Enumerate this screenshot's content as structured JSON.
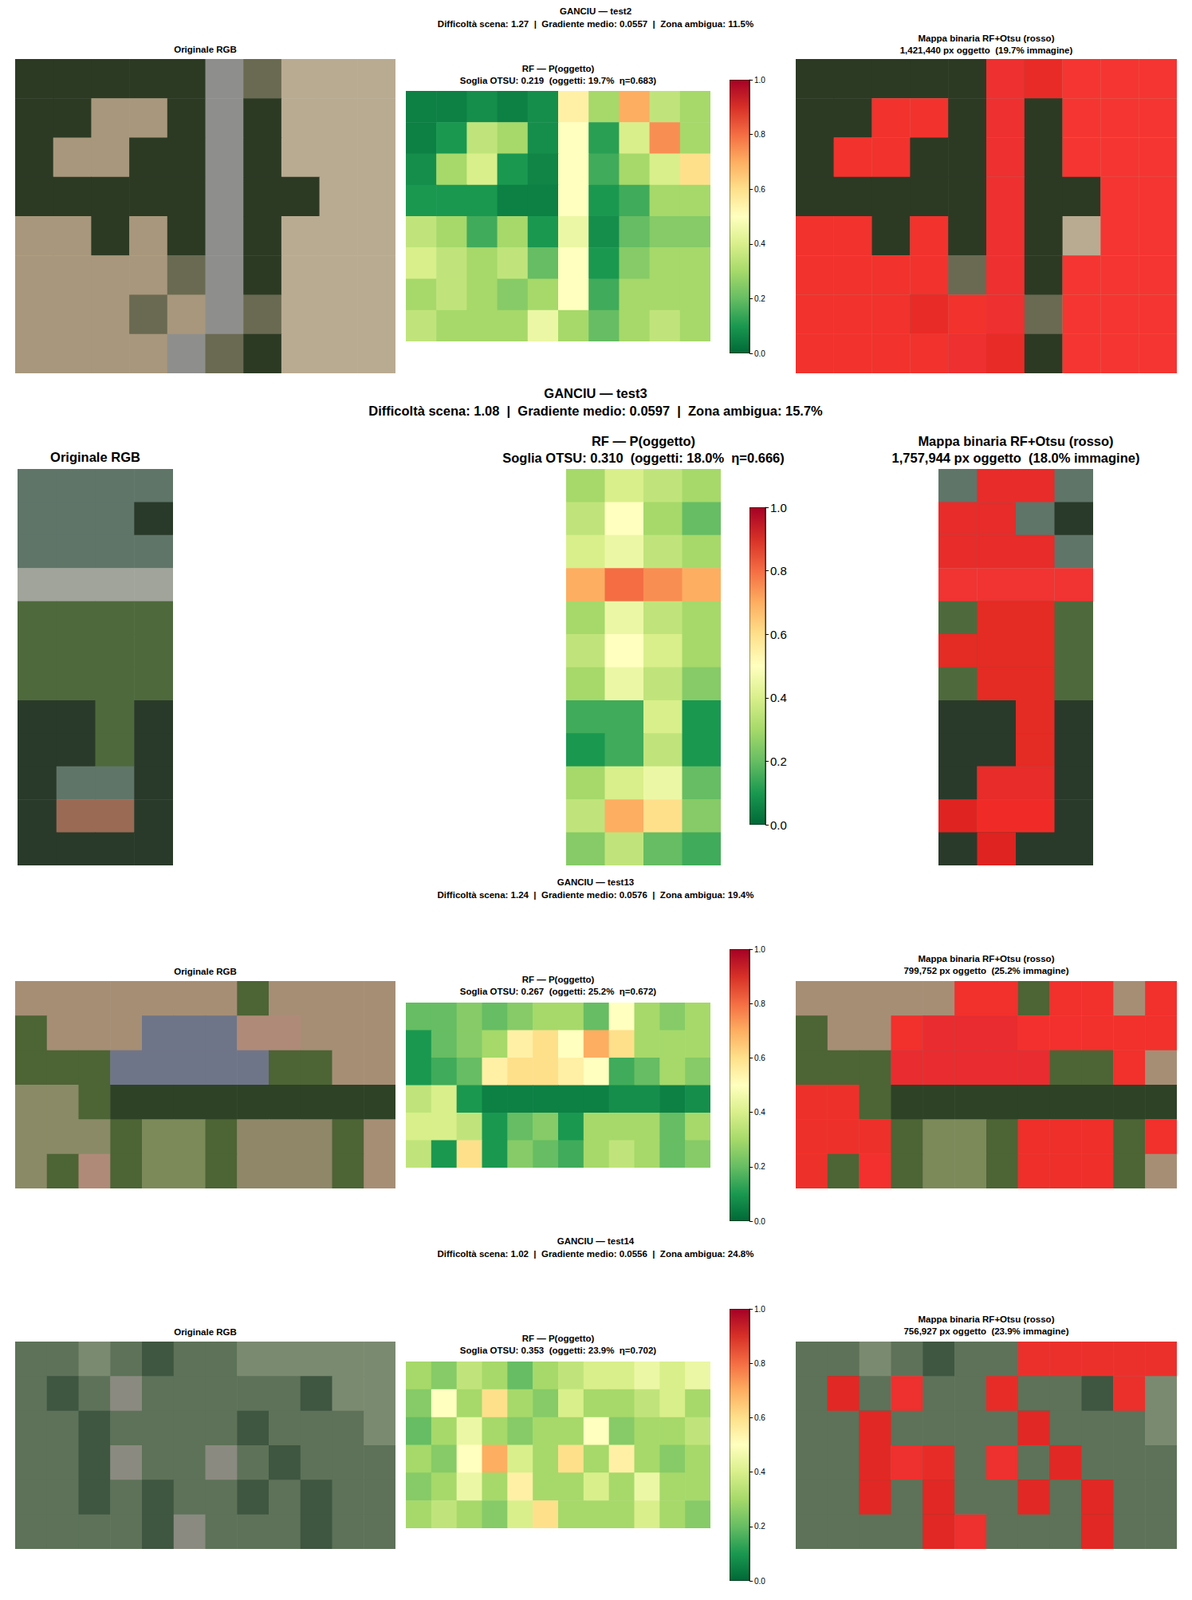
{
  "chart_data": [
    {
      "type": "heatmap",
      "title": "GANCIU — test2",
      "subtitle": "Difficoltà scena: 1.27  |  Gradiente medio: 0.0557  |  Zona ambigua: 11.5%",
      "rgb_title": "Originale RGB",
      "prob_title": "RF — P(oggetto)",
      "prob_subtitle": "Soglia OTSU: 0.219  (oggetti: 19.7%  η=0.683)",
      "binary_title": "Mappa binaria RF+Otsu (rosso)",
      "binary_subtitle": "1,421,440 px oggetto  (19.7% immagine)",
      "threshold": 0.219,
      "color": "#ff2020",
      "tick_labels": false,
      "rgb": [
        [
          "#2c3a24",
          "#2c3a24",
          "#2c3a24",
          "#2c3a24",
          "#2c3a24",
          "#8e8f8c",
          "#6a6a52",
          "#b9ab92",
          "#b9ab92",
          "#b9ab92"
        ],
        [
          "#2c3a24",
          "#2c3a24",
          "#a8977c",
          "#a8977c",
          "#2c3a24",
          "#8e8f8c",
          "#2c3a24",
          "#b9ab92",
          "#b9ab92",
          "#b9ab92"
        ],
        [
          "#2c3a24",
          "#a8977c",
          "#a8977c",
          "#2c3a24",
          "#2c3a24",
          "#8e8f8c",
          "#2c3a24",
          "#b9ab92",
          "#b9ab92",
          "#b9ab92"
        ],
        [
          "#2c3a24",
          "#2c3a24",
          "#2c3a24",
          "#2c3a24",
          "#2c3a24",
          "#8e8f8c",
          "#2c3a24",
          "#2c3a24",
          "#b9ab92",
          "#b9ab92"
        ],
        [
          "#a8977c",
          "#a8977c",
          "#2c3a24",
          "#a8977c",
          "#2c3a24",
          "#8e8f8c",
          "#2c3a24",
          "#b9ab92",
          "#b9ab92",
          "#b9ab92"
        ],
        [
          "#a8977c",
          "#a8977c",
          "#a8977c",
          "#a8977c",
          "#6a6a52",
          "#8e8f8c",
          "#2c3a24",
          "#b9ab92",
          "#b9ab92",
          "#b9ab92"
        ],
        [
          "#a8977c",
          "#a8977c",
          "#a8977c",
          "#6a6a52",
          "#a8977c",
          "#8e8f8c",
          "#6a6a52",
          "#b9ab92",
          "#b9ab92",
          "#b9ab92"
        ],
        [
          "#a8977c",
          "#a8977c",
          "#a8977c",
          "#a8977c",
          "#8e8f8c",
          "#6a6a52",
          "#2c3a24",
          "#b9ab92",
          "#b9ab92",
          "#b9ab92"
        ]
      ],
      "probability": [
        [
          0.05,
          0.05,
          0.08,
          0.05,
          0.08,
          0.55,
          0.3,
          0.7,
          0.35,
          0.3
        ],
        [
          0.05,
          0.1,
          0.35,
          0.3,
          0.08,
          0.5,
          0.12,
          0.4,
          0.75,
          0.3
        ],
        [
          0.08,
          0.3,
          0.4,
          0.1,
          0.06,
          0.5,
          0.15,
          0.3,
          0.4,
          0.6
        ],
        [
          0.1,
          0.1,
          0.1,
          0.05,
          0.05,
          0.5,
          0.1,
          0.15,
          0.3,
          0.3
        ],
        [
          0.35,
          0.3,
          0.15,
          0.3,
          0.1,
          0.45,
          0.08,
          0.2,
          0.25,
          0.25
        ],
        [
          0.4,
          0.35,
          0.3,
          0.35,
          0.2,
          0.5,
          0.1,
          0.25,
          0.3,
          0.3
        ],
        [
          0.3,
          0.35,
          0.3,
          0.25,
          0.3,
          0.5,
          0.15,
          0.3,
          0.3,
          0.3
        ],
        [
          0.35,
          0.3,
          0.3,
          0.3,
          0.45,
          0.3,
          0.2,
          0.3,
          0.35,
          0.3
        ]
      ],
      "colorbar": {
        "range": [
          0,
          1
        ],
        "ticks": [
          {
            "value": 0,
            "label": "0.0"
          },
          0.2,
          0.4,
          0.6,
          0.8,
          {
            "value": 1,
            "label": "1.0"
          }
        ]
      }
    },
    {
      "type": "heatmap",
      "title": "GANCIU — test3",
      "subtitle": "Difficoltà scena: 1.08  |  Gradiente medio: 0.0597  |  Zona ambigua: 15.7%",
      "rgb_title": "Originale RGB",
      "prob_title": "RF — P(oggetto)",
      "prob_subtitle": "Soglia OTSU: 0.310  (oggetti: 18.0%  η=0.666)",
      "binary_title": "Mappa binaria RF+Otsu (rosso)",
      "binary_subtitle": "1,757,944 px oggetto  (18.0% immagine)",
      "threshold": 0.31,
      "color": "#ff2020",
      "tick_labels": false,
      "rgb": [
        [
          "#5f7568",
          "#5f7568",
          "#5f7568",
          "#5f7568"
        ],
        [
          "#5f7568",
          "#5f7568",
          "#5f7568",
          "#2a3a2a"
        ],
        [
          "#5f7568",
          "#5f7568",
          "#5f7568",
          "#5f7568"
        ],
        [
          "#a0a49a",
          "#a0a49a",
          "#a0a49a",
          "#a0a49a"
        ],
        [
          "#4e6a3c",
          "#4e6a3c",
          "#4e6a3c",
          "#4e6a3c"
        ],
        [
          "#4e6a3c",
          "#4e6a3c",
          "#4e6a3c",
          "#4e6a3c"
        ],
        [
          "#4e6a3c",
          "#4e6a3c",
          "#4e6a3c",
          "#4e6a3c"
        ],
        [
          "#2a3a2a",
          "#2a3a2a",
          "#4e6a3c",
          "#2a3a2a"
        ],
        [
          "#2a3a2a",
          "#2a3a2a",
          "#4e6a3c",
          "#2a3a2a"
        ],
        [
          "#2a3a2a",
          "#5f7568",
          "#5f7568",
          "#2a3a2a"
        ],
        [
          "#2a3a2a",
          "#9a6a55",
          "#9a6a55",
          "#2a3a2a"
        ],
        [
          "#2a3a2a",
          "#2a3a2a",
          "#2a3a2a",
          "#2a3a2a"
        ]
      ],
      "probability": [
        [
          0.3,
          0.4,
          0.35,
          0.3
        ],
        [
          0.35,
          0.5,
          0.3,
          0.2
        ],
        [
          0.4,
          0.45,
          0.35,
          0.3
        ],
        [
          0.7,
          0.8,
          0.75,
          0.7
        ],
        [
          0.3,
          0.45,
          0.35,
          0.3
        ],
        [
          0.35,
          0.5,
          0.4,
          0.3
        ],
        [
          0.3,
          0.45,
          0.35,
          0.25
        ],
        [
          0.15,
          0.15,
          0.4,
          0.1
        ],
        [
          0.1,
          0.15,
          0.35,
          0.1
        ],
        [
          0.3,
          0.4,
          0.45,
          0.2
        ],
        [
          0.35,
          0.7,
          0.6,
          0.25
        ],
        [
          0.25,
          0.35,
          0.2,
          0.15
        ]
      ],
      "colorbar": {
        "range": [
          0,
          1
        ],
        "ticks": [
          {
            "value": 0,
            "label": "0.0"
          },
          0.2,
          0.4,
          0.6,
          0.8,
          {
            "value": 1,
            "label": "1.0"
          }
        ]
      }
    },
    {
      "type": "heatmap",
      "title": "GANCIU — test13",
      "subtitle": "Difficoltà scena: 1.24  |  Gradiente medio: 0.0576  |  Zona ambigua: 19.4%",
      "rgb_title": "Originale RGB",
      "prob_title": "RF — P(oggetto)",
      "prob_subtitle": "Soglia OTSU: 0.267  (oggetti: 25.2%  η=0.672)",
      "binary_title": "Mappa binaria RF+Otsu (rosso)",
      "binary_subtitle": "799,752 px oggetto  (25.2% immagine)",
      "threshold": 0.267,
      "color": "#ff2020",
      "tick_labels": false,
      "rgb": [
        [
          "#a68e75",
          "#a68e75",
          "#a68e75",
          "#a68e75",
          "#a68e75",
          "#a68e75",
          "#a68e75",
          "#4d6435",
          "#a68e75",
          "#a68e75",
          "#a68e75",
          "#a68e75"
        ],
        [
          "#4d6435",
          "#a68e75",
          "#a68e75",
          "#a68e75",
          "#6f7588",
          "#6f7588",
          "#6f7588",
          "#b08a78",
          "#b08a78",
          "#a68e75",
          "#a68e75",
          "#a68e75"
        ],
        [
          "#4d6435",
          "#4d6435",
          "#4d6435",
          "#6f7588",
          "#6f7588",
          "#6f7588",
          "#6f7588",
          "#6f7588",
          "#4d6435",
          "#4d6435",
          "#a68e75",
          "#a68e75"
        ],
        [
          "#8a8a66",
          "#8a8a66",
          "#4d6435",
          "#2e4226",
          "#2e4226",
          "#2e4226",
          "#2e4226",
          "#2e4226",
          "#2e4226",
          "#2e4226",
          "#2e4226",
          "#2e4226"
        ],
        [
          "#8a8a66",
          "#8a8a66",
          "#8a8a66",
          "#4d6435",
          "#7c8a5a",
          "#7c8a5a",
          "#4d6435",
          "#8f8768",
          "#8f8768",
          "#8f8768",
          "#4d6435",
          "#a68e75"
        ],
        [
          "#8a8a66",
          "#4d6435",
          "#b08a78",
          "#4d6435",
          "#7c8a5a",
          "#7c8a5a",
          "#4d6435",
          "#8f8768",
          "#8f8768",
          "#8f8768",
          "#4d6435",
          "#a68e75"
        ]
      ],
      "probability": [
        [
          0.2,
          0.2,
          0.25,
          0.2,
          0.25,
          0.3,
          0.3,
          0.2,
          0.5,
          0.3,
          0.25,
          0.3
        ],
        [
          0.1,
          0.2,
          0.25,
          0.3,
          0.55,
          0.6,
          0.5,
          0.7,
          0.6,
          0.3,
          0.3,
          0.3
        ],
        [
          0.1,
          0.15,
          0.2,
          0.55,
          0.6,
          0.6,
          0.55,
          0.5,
          0.15,
          0.2,
          0.3,
          0.25
        ],
        [
          0.35,
          0.4,
          0.1,
          0.05,
          0.05,
          0.05,
          0.05,
          0.05,
          0.08,
          0.08,
          0.05,
          0.08
        ],
        [
          0.4,
          0.4,
          0.35,
          0.1,
          0.2,
          0.25,
          0.1,
          0.3,
          0.3,
          0.3,
          0.2,
          0.3
        ],
        [
          0.35,
          0.1,
          0.6,
          0.1,
          0.25,
          0.2,
          0.15,
          0.3,
          0.35,
          0.3,
          0.2,
          0.25
        ]
      ],
      "colorbar": {
        "range": [
          0,
          1
        ],
        "ticks": [
          {
            "value": 0,
            "label": "0.0"
          },
          0.2,
          0.4,
          0.6,
          0.8,
          {
            "value": 1,
            "label": "1.0"
          }
        ]
      }
    },
    {
      "type": "heatmap",
      "title": "GANCIU — test14",
      "subtitle": "Difficoltà scena: 1.02  |  Gradiente medio: 0.0556  |  Zona ambigua: 24.8%",
      "rgb_title": "Originale RGB",
      "prob_title": "RF — P(oggetto)",
      "prob_subtitle": "Soglia OTSU: 0.353  (oggetti: 23.9%  η=0.702)",
      "binary_title": "Mappa binaria RF+Otsu (rosso)",
      "binary_subtitle": "756,927 px oggetto  (23.9% immagine)",
      "threshold": 0.353,
      "color": "#ff2020",
      "tick_labels": false,
      "rgb": [
        [
          "#5d7258",
          "#5d7258",
          "#7a8a70",
          "#5d7258",
          "#3f5640",
          "#5d7258",
          "#5d7258",
          "#7a8a70",
          "#7a8a70",
          "#7a8a70",
          "#7a8a70",
          "#7a8a70"
        ],
        [
          "#5d7258",
          "#3f5640",
          "#5d7258",
          "#8a8a80",
          "#5d7258",
          "#5d7258",
          "#5d7258",
          "#5d7258",
          "#5d7258",
          "#3f5640",
          "#7a8a70",
          "#7a8a70"
        ],
        [
          "#5d7258",
          "#5d7258",
          "#3f5640",
          "#5d7258",
          "#5d7258",
          "#5d7258",
          "#5d7258",
          "#3f5640",
          "#5d7258",
          "#5d7258",
          "#5d7258",
          "#7a8a70"
        ],
        [
          "#5d7258",
          "#5d7258",
          "#3f5640",
          "#8a8a80",
          "#5d7258",
          "#5d7258",
          "#8a8a80",
          "#5d7258",
          "#3f5640",
          "#5d7258",
          "#5d7258",
          "#5d7258"
        ],
        [
          "#5d7258",
          "#5d7258",
          "#3f5640",
          "#5d7258",
          "#3f5640",
          "#5d7258",
          "#5d7258",
          "#3f5640",
          "#5d7258",
          "#3f5640",
          "#5d7258",
          "#5d7258"
        ],
        [
          "#5d7258",
          "#5d7258",
          "#5d7258",
          "#5d7258",
          "#3f5640",
          "#8a8a80",
          "#5d7258",
          "#5d7258",
          "#5d7258",
          "#3f5640",
          "#5d7258",
          "#5d7258"
        ]
      ],
      "probability": [
        [
          0.3,
          0.25,
          0.35,
          0.3,
          0.2,
          0.3,
          0.35,
          0.4,
          0.4,
          0.45,
          0.4,
          0.45
        ],
        [
          0.25,
          0.5,
          0.3,
          0.6,
          0.3,
          0.25,
          0.4,
          0.3,
          0.3,
          0.35,
          0.4,
          0.3
        ],
        [
          0.2,
          0.3,
          0.45,
          0.3,
          0.25,
          0.3,
          0.3,
          0.5,
          0.25,
          0.3,
          0.3,
          0.35
        ],
        [
          0.3,
          0.25,
          0.5,
          0.7,
          0.4,
          0.3,
          0.6,
          0.3,
          0.55,
          0.3,
          0.25,
          0.3
        ],
        [
          0.25,
          0.3,
          0.45,
          0.3,
          0.55,
          0.3,
          0.3,
          0.4,
          0.3,
          0.45,
          0.3,
          0.3
        ],
        [
          0.3,
          0.35,
          0.3,
          0.25,
          0.4,
          0.6,
          0.3,
          0.3,
          0.3,
          0.4,
          0.3,
          0.25
        ]
      ],
      "colorbar": {
        "range": [
          0,
          1
        ],
        "ticks": [
          {
            "value": 0,
            "label": "0.0"
          },
          0.2,
          0.4,
          0.6,
          0.8,
          {
            "value": 1,
            "label": "1.0"
          }
        ]
      }
    }
  ]
}
